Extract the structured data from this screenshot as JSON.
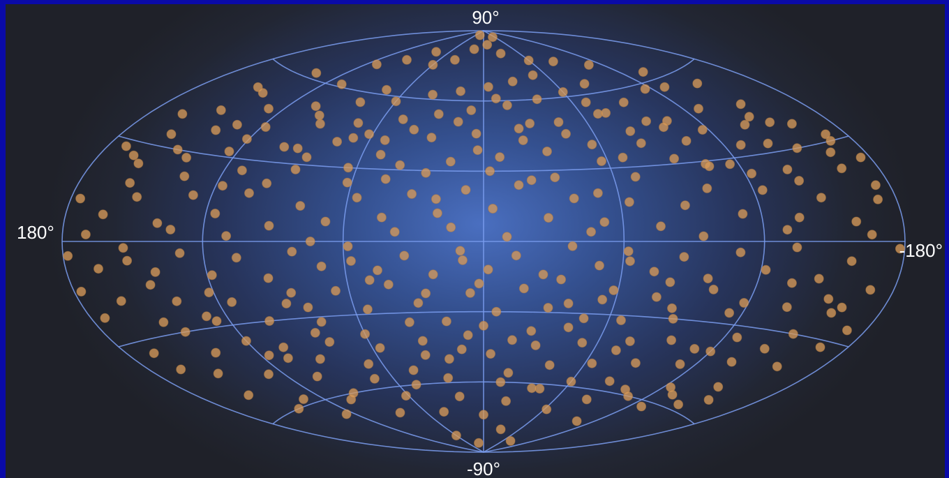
{
  "chart_data": {
    "type": "scatter",
    "projection": "aitoff",
    "labels": {
      "top": "90°",
      "bottom": "-90°",
      "left": "180°",
      "right": "-180°"
    },
    "xlim": [
      180,
      -180
    ],
    "ylim": [
      -90,
      90
    ],
    "grid": true,
    "colors": {
      "grid": "#7b9ef0",
      "point": "#d69a5a",
      "background_center": "#4a6fc0",
      "background_edge": "#1f2129",
      "border": "#0a0aa8"
    },
    "points": [
      [
        152,
        53
      ],
      [
        138,
        62
      ],
      [
        112,
        70
      ],
      [
        95,
        74
      ],
      [
        80,
        79
      ],
      [
        60,
        74
      ],
      [
        40,
        77
      ],
      [
        20,
        82
      ],
      [
        -10,
        84
      ],
      [
        -30,
        80
      ],
      [
        -60,
        76
      ],
      [
        -85,
        74
      ],
      [
        -110,
        70
      ],
      [
        -135,
        63
      ],
      [
        -150,
        55
      ],
      [
        165,
        40
      ],
      [
        150,
        44
      ],
      [
        140,
        38
      ],
      [
        128,
        48
      ],
      [
        118,
        42
      ],
      [
        105,
        52
      ],
      [
        92,
        46
      ],
      [
        82,
        56
      ],
      [
        72,
        48
      ],
      [
        60,
        58
      ],
      [
        48,
        51
      ],
      [
        38,
        62
      ],
      [
        28,
        54
      ],
      [
        18,
        64
      ],
      [
        8,
        56
      ],
      [
        -4,
        66
      ],
      [
        -16,
        58
      ],
      [
        -26,
        68
      ],
      [
        -38,
        60
      ],
      [
        -48,
        70
      ],
      [
        -60,
        62
      ],
      [
        -70,
        52
      ],
      [
        -82,
        64
      ],
      [
        -92,
        55
      ],
      [
        -104,
        46
      ],
      [
        -116,
        58
      ],
      [
        -128,
        48
      ],
      [
        -140,
        40
      ],
      [
        -152,
        46
      ],
      [
        -162,
        37
      ],
      [
        -170,
        30
      ],
      [
        172,
        28
      ],
      [
        160,
        24
      ],
      [
        148,
        30
      ],
      [
        136,
        22
      ],
      [
        124,
        32
      ],
      [
        112,
        26
      ],
      [
        100,
        36
      ],
      [
        88,
        28
      ],
      [
        76,
        40
      ],
      [
        64,
        30
      ],
      [
        52,
        42
      ],
      [
        40,
        32
      ],
      [
        28,
        44
      ],
      [
        16,
        34
      ],
      [
        4,
        46
      ],
      [
        -8,
        36
      ],
      [
        -20,
        48
      ],
      [
        -32,
        38
      ],
      [
        -44,
        50
      ],
      [
        -56,
        40
      ],
      [
        -68,
        34
      ],
      [
        -80,
        44
      ],
      [
        -92,
        32
      ],
      [
        -104,
        38
      ],
      [
        -116,
        28
      ],
      [
        -128,
        34
      ],
      [
        -140,
        24
      ],
      [
        -152,
        30
      ],
      [
        -164,
        22
      ],
      [
        -174,
        16
      ],
      [
        176,
        12
      ],
      [
        164,
        8
      ],
      [
        152,
        14
      ],
      [
        140,
        6
      ],
      [
        128,
        16
      ],
      [
        116,
        10
      ],
      [
        104,
        18
      ],
      [
        92,
        6
      ],
      [
        80,
        14
      ],
      [
        68,
        8
      ],
      [
        56,
        18
      ],
      [
        44,
        10
      ],
      [
        32,
        20
      ],
      [
        20,
        12
      ],
      [
        8,
        22
      ],
      [
        -4,
        14
      ],
      [
        -16,
        24
      ],
      [
        -28,
        10
      ],
      [
        -40,
        18
      ],
      [
        -52,
        8
      ],
      [
        -64,
        16
      ],
      [
        -76,
        6
      ],
      [
        -88,
        14
      ],
      [
        -100,
        20
      ],
      [
        -112,
        10
      ],
      [
        -124,
        18
      ],
      [
        -136,
        8
      ],
      [
        -148,
        14
      ],
      [
        -160,
        6
      ],
      [
        -172,
        12
      ],
      [
        178,
        -4
      ],
      [
        166,
        -8
      ],
      [
        154,
        -2
      ],
      [
        142,
        -10
      ],
      [
        130,
        -4
      ],
      [
        118,
        -12
      ],
      [
        106,
        -6
      ],
      [
        94,
        -14
      ],
      [
        82,
        -4
      ],
      [
        70,
        -10
      ],
      [
        58,
        -2
      ],
      [
        46,
        -12
      ],
      [
        34,
        -6
      ],
      [
        22,
        -14
      ],
      [
        10,
        -4
      ],
      [
        -2,
        -12
      ],
      [
        -14,
        -6
      ],
      [
        -26,
        -14
      ],
      [
        -38,
        -2
      ],
      [
        -50,
        -10
      ],
      [
        -62,
        -4
      ],
      [
        -74,
        -12
      ],
      [
        -86,
        -6
      ],
      [
        -98,
        -14
      ],
      [
        -110,
        -4
      ],
      [
        -122,
        -10
      ],
      [
        -134,
        -2
      ],
      [
        -146,
        -12
      ],
      [
        -158,
        -6
      ],
      [
        -170,
        -14
      ],
      [
        -178,
        -2
      ],
      [
        174,
        -22
      ],
      [
        162,
        -18
      ],
      [
        150,
        -26
      ],
      [
        138,
        -20
      ],
      [
        126,
        -28
      ],
      [
        114,
        -22
      ],
      [
        102,
        -30
      ],
      [
        90,
        -24
      ],
      [
        78,
        -32
      ],
      [
        66,
        -20
      ],
      [
        54,
        -28
      ],
      [
        42,
        -18
      ],
      [
        30,
        -26
      ],
      [
        18,
        -34
      ],
      [
        6,
        -22
      ],
      [
        -6,
        -30
      ],
      [
        -18,
        -20
      ],
      [
        -30,
        -28
      ],
      [
        -42,
        -36
      ],
      [
        -54,
        -24
      ],
      [
        -66,
        -32
      ],
      [
        -78,
        -22
      ],
      [
        -90,
        -30
      ],
      [
        -102,
        -18
      ],
      [
        -114,
        -26
      ],
      [
        -126,
        -34
      ],
      [
        -138,
        -22
      ],
      [
        -150,
        -30
      ],
      [
        -162,
        -20
      ],
      [
        -172,
        -26
      ],
      [
        166,
        -40
      ],
      [
        152,
        -44
      ],
      [
        140,
        -38
      ],
      [
        128,
        -48
      ],
      [
        116,
        -42
      ],
      [
        104,
        -52
      ],
      [
        92,
        -46
      ],
      [
        80,
        -40
      ],
      [
        68,
        -50
      ],
      [
        56,
        -44
      ],
      [
        44,
        -54
      ],
      [
        32,
        -42
      ],
      [
        20,
        -50
      ],
      [
        8,
        -40
      ],
      [
        -4,
        -48
      ],
      [
        -16,
        -56
      ],
      [
        -28,
        -44
      ],
      [
        -40,
        -52
      ],
      [
        -52,
        -42
      ],
      [
        -64,
        -50
      ],
      [
        -76,
        -40
      ],
      [
        -88,
        -48
      ],
      [
        -100,
        -58
      ],
      [
        -112,
        -46
      ],
      [
        -124,
        -54
      ],
      [
        -136,
        -42
      ],
      [
        -148,
        -50
      ],
      [
        -160,
        -40
      ],
      [
        146,
        -60
      ],
      [
        126,
        -66
      ],
      [
        104,
        -62
      ],
      [
        84,
        -70
      ],
      [
        62,
        -64
      ],
      [
        42,
        -72
      ],
      [
        20,
        -66
      ],
      [
        0,
        -74
      ],
      [
        -20,
        -68
      ],
      [
        -42,
        -62
      ],
      [
        -62,
        -70
      ],
      [
        -84,
        -64
      ],
      [
        -106,
        -72
      ],
      [
        -128,
        -62
      ],
      [
        -146,
        -58
      ],
      [
        60,
        -82
      ],
      [
        20,
        -86
      ],
      [
        -30,
        -80
      ],
      [
        -80,
        -84
      ],
      [
        30,
        88
      ],
      [
        -50,
        87
      ],
      [
        158,
        34
      ],
      [
        144,
        52
      ],
      [
        133,
        41
      ],
      [
        121,
        37
      ],
      [
        109,
        61
      ],
      [
        97,
        49
      ],
      [
        86,
        33
      ],
      [
        74,
        62
      ],
      [
        62,
        44
      ],
      [
        51,
        36
      ],
      [
        39,
        47
      ],
      [
        27,
        29
      ],
      [
        15,
        51
      ],
      [
        3,
        39
      ],
      [
        -9,
        61
      ],
      [
        -21,
        43
      ],
      [
        -33,
        27
      ],
      [
        -45,
        45
      ],
      [
        -57,
        33
      ],
      [
        -69,
        57
      ],
      [
        -81,
        39
      ],
      [
        -93,
        47
      ],
      [
        -105,
        29
      ],
      [
        -117,
        41
      ],
      [
        -129,
        57
      ],
      [
        -141,
        33
      ],
      [
        -153,
        39
      ],
      [
        -165,
        27
      ],
      [
        170,
        2
      ],
      [
        158,
        18
      ],
      [
        146,
        -14
      ],
      [
        134,
        4
      ],
      [
        122,
        -18
      ],
      [
        110,
        2
      ],
      [
        98,
        22
      ],
      [
        86,
        -20
      ],
      [
        74,
        0
      ],
      [
        62,
        24
      ],
      [
        50,
        -16
      ],
      [
        38,
        4
      ],
      [
        26,
        -22
      ],
      [
        14,
        6
      ],
      [
        2,
        -18
      ],
      [
        -10,
        2
      ],
      [
        -22,
        26
      ],
      [
        -34,
        -16
      ],
      [
        -46,
        4
      ],
      [
        -58,
        -20
      ],
      [
        -70,
        26
      ],
      [
        -82,
        -16
      ],
      [
        -94,
        2
      ],
      [
        -106,
        28
      ],
      [
        -118,
        -22
      ],
      [
        -130,
        4
      ],
      [
        -142,
        20
      ],
      [
        -154,
        -18
      ],
      [
        -166,
        2
      ],
      [
        -176,
        24
      ],
      [
        168,
        -34
      ],
      [
        156,
        -52
      ],
      [
        144,
        -30
      ],
      [
        132,
        -58
      ],
      [
        120,
        -36
      ],
      [
        108,
        -44
      ],
      [
        96,
        -60
      ],
      [
        84,
        -36
      ],
      [
        72,
        -56
      ],
      [
        60,
        -38
      ],
      [
        48,
        -60
      ],
      [
        36,
        -34
      ],
      [
        24,
        -58
      ],
      [
        12,
        -46
      ],
      [
        0,
        -36
      ],
      [
        -12,
        -60
      ],
      [
        -24,
        -38
      ],
      [
        -36,
        -62
      ],
      [
        -48,
        -32
      ],
      [
        -60,
        -58
      ],
      [
        -72,
        -44
      ],
      [
        -84,
        -56
      ],
      [
        -96,
        -38
      ],
      [
        -108,
        -60
      ],
      [
        -120,
        -40
      ],
      [
        -132,
        -56
      ],
      [
        -144,
        -36
      ],
      [
        -156,
        -54
      ],
      [
        -168,
        -32
      ],
      [
        177,
        -14
      ],
      [
        165,
        26
      ],
      [
        153,
        -6
      ],
      [
        141,
        28
      ],
      [
        129,
        -26
      ],
      [
        117,
        20
      ],
      [
        105,
        -40
      ],
      [
        93,
        36
      ],
      [
        81,
        -26
      ],
      [
        69,
        42
      ],
      [
        57,
        -8
      ],
      [
        45,
        26
      ],
      [
        33,
        -48
      ],
      [
        21,
        18
      ],
      [
        9,
        -8
      ],
      [
        -3,
        30
      ],
      [
        -15,
        -42
      ],
      [
        -27,
        50
      ],
      [
        -39,
        -26
      ],
      [
        -51,
        20
      ],
      [
        -63,
        -8
      ],
      [
        -75,
        52
      ],
      [
        -87,
        -26
      ],
      [
        -99,
        44
      ],
      [
        -111,
        -40
      ],
      [
        -123,
        24
      ],
      [
        -135,
        -14
      ],
      [
        -147,
        42
      ],
      [
        -159,
        -22
      ],
      [
        -171,
        32
      ]
    ]
  }
}
